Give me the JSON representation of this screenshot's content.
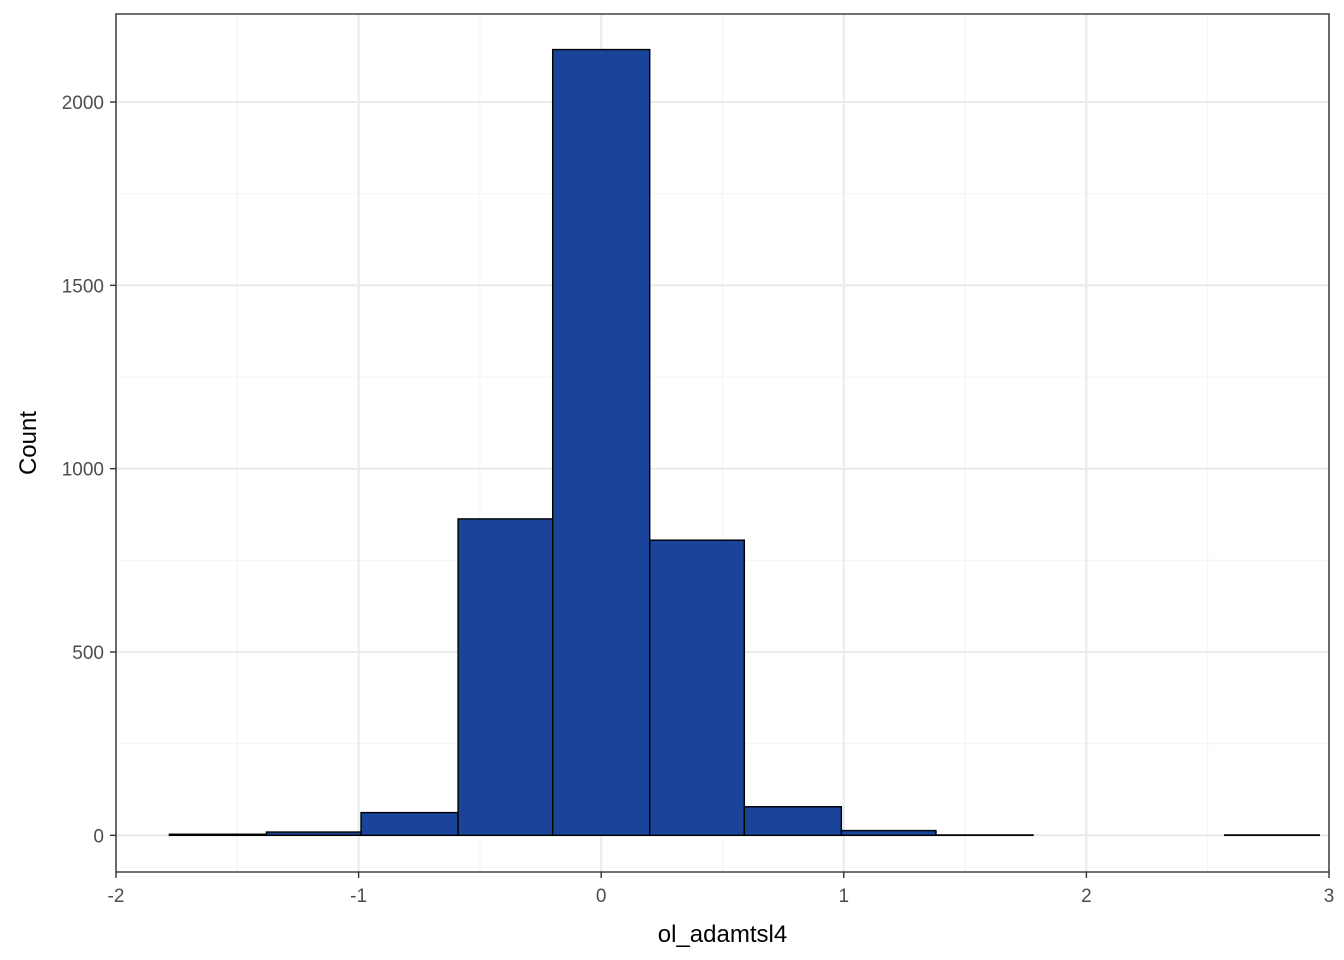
{
  "chart_data": {
    "type": "histogram",
    "title": "",
    "xlabel": "ol_adamtsl4",
    "ylabel": "Count",
    "xlim": [
      -2.0,
      3.0
    ],
    "ylim": [
      -100,
      2240
    ],
    "x_ticks": [
      {
        "value": -2,
        "label": "-2"
      },
      {
        "value": -1,
        "label": "-1"
      },
      {
        "value": 0,
        "label": "0"
      },
      {
        "value": 1,
        "label": "1"
      },
      {
        "value": 2,
        "label": "2"
      },
      {
        "value": 3,
        "label": "3"
      }
    ],
    "y_ticks": [
      {
        "value": 0,
        "label": "0"
      },
      {
        "value": 500,
        "label": "500"
      },
      {
        "value": 1000,
        "label": "1000"
      },
      {
        "value": 1500,
        "label": "1500"
      },
      {
        "value": 2000,
        "label": "2000"
      }
    ],
    "x_minor": [
      -1.5,
      -0.5,
      0.5,
      1.5,
      2.5
    ],
    "y_minor": [
      250,
      750,
      1250,
      1750
    ],
    "grid": true,
    "bins": [
      {
        "x0": -1.78,
        "x1": -1.38,
        "count": 3
      },
      {
        "x0": -1.38,
        "x1": -0.99,
        "count": 9
      },
      {
        "x0": -0.99,
        "x1": -0.59,
        "count": 62
      },
      {
        "x0": -0.59,
        "x1": -0.2,
        "count": 863
      },
      {
        "x0": -0.2,
        "x1": 0.2,
        "count": 2143
      },
      {
        "x0": 0.2,
        "x1": 0.59,
        "count": 805
      },
      {
        "x0": 0.59,
        "x1": 0.99,
        "count": 78
      },
      {
        "x0": 0.99,
        "x1": 1.38,
        "count": 13
      },
      {
        "x0": 1.38,
        "x1": 1.78,
        "count": 1
      },
      {
        "x0": 1.78,
        "x1": 2.17,
        "count": 0
      },
      {
        "x0": 2.17,
        "x1": 2.57,
        "count": 0
      },
      {
        "x0": 2.57,
        "x1": 2.96,
        "count": 1
      }
    ],
    "colors": {
      "fill": "#1A4499",
      "stroke": "#000000",
      "grid_major": "#EBEBEB",
      "grid_minor": "#F5F5F5",
      "panel_border": "#333333",
      "tick_text": "#4D4D4D"
    }
  }
}
